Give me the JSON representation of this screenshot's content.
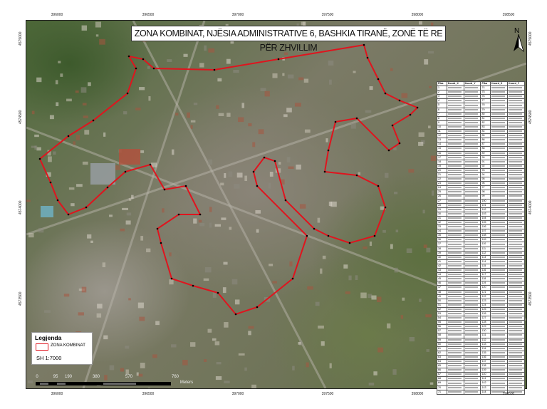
{
  "title": "ZONA KOMBINAT, NJËSIA ADMINISTRATIVE 6, BASHKIA TIRANË, ZONË TË RE PËR ZHVILLIM",
  "north_arrow": {
    "label": "N",
    "icon": "north-arrow-icon"
  },
  "grid": {
    "x_ticks": [
      "396000",
      "396500",
      "397000",
      "397500",
      "398000",
      "398500"
    ],
    "y_ticks": [
      "4575000",
      "4574500",
      "4574000",
      "4573500"
    ]
  },
  "legend": {
    "title": "Legjenda",
    "items": [
      {
        "label": "ZONA KOMBINAT",
        "color": "#e0141e"
      }
    ],
    "scale": "SH 1:7000"
  },
  "scale_bar": {
    "labels": [
      "0",
      "95",
      "190",
      "380",
      "570",
      "760"
    ],
    "unit": "Meters"
  },
  "zone_boundary_color": "#e0141e",
  "vertex_label_color": "#f2e600",
  "coordinates_table": {
    "headers": [
      "Pika",
      "Koord_X",
      "Koord_Y",
      "Pika",
      "Koord_X",
      "Koord_Y"
    ],
    "left_points_first": 1,
    "left_points_last": 71,
    "right_points_first": 74,
    "right_points_last": 144
  }
}
